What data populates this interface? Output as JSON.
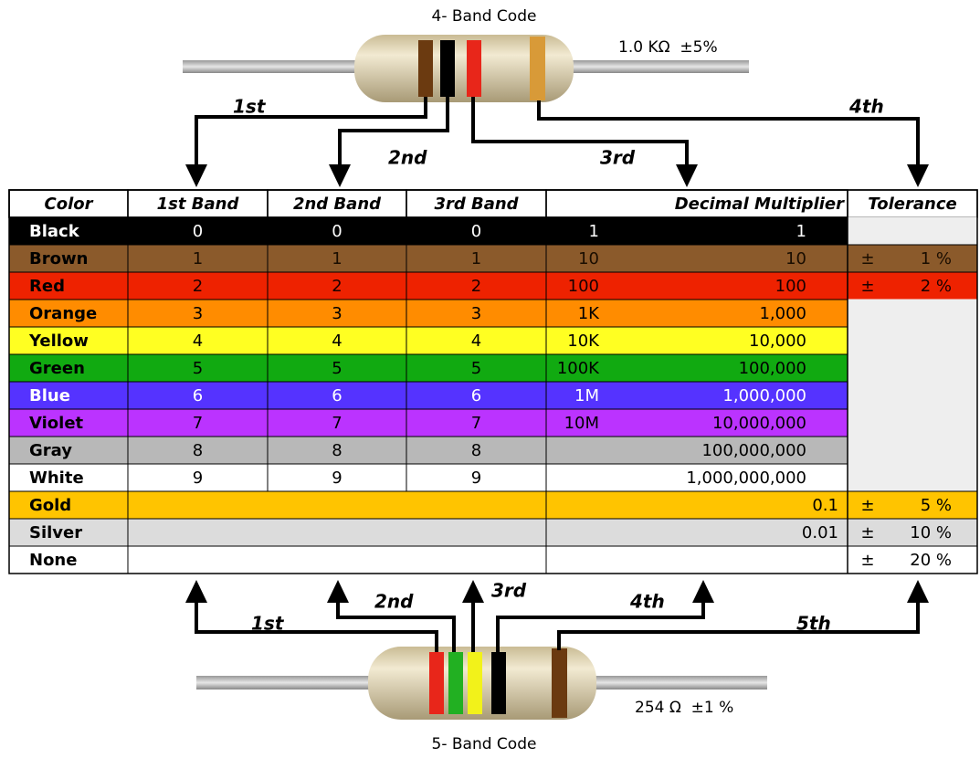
{
  "top": {
    "title": "4- Band Code",
    "value": "1.0 KΩ  ±5%",
    "labels": [
      "1st",
      "2nd",
      "3rd",
      "4th"
    ]
  },
  "bottom": {
    "title": "5- Band Code",
    "value": "254 Ω  ±1 %",
    "labels": [
      "1st",
      "2nd",
      "3rd",
      "4th",
      "5th"
    ]
  },
  "table": {
    "header": [
      "Color",
      "1st Band",
      "2nd Band",
      "3rd Band",
      "Decimal Multiplier",
      "Tolerance"
    ],
    "rows": [
      {
        "color": "Black",
        "bands": [
          "0",
          "0",
          "0"
        ],
        "multiplier": [
          "1",
          "1"
        ],
        "tolerance": null,
        "fill": "#000000",
        "text": "#ffffff"
      },
      {
        "color": "Brown",
        "bands": [
          "1",
          "1",
          "1"
        ],
        "multiplier": [
          "10",
          "10"
        ],
        "tolerance": [
          "±",
          "1 %"
        ],
        "fill": "#8b5a2b",
        "text": "#1a0d00"
      },
      {
        "color": "Red",
        "bands": [
          "2",
          "2",
          "2"
        ],
        "multiplier": [
          "100",
          "100"
        ],
        "tolerance": [
          "±",
          "2 %"
        ],
        "fill": "#ee2200",
        "text": "#1a0000"
      },
      {
        "color": "Orange",
        "bands": [
          "3",
          "3",
          "3"
        ],
        "multiplier": [
          "1K",
          "1,000"
        ],
        "tolerance": null,
        "fill": "#ff8c00",
        "text": "#000000"
      },
      {
        "color": "Yellow",
        "bands": [
          "4",
          "4",
          "4"
        ],
        "multiplier": [
          "10K",
          "10,000"
        ],
        "tolerance": null,
        "fill": "#ffff22",
        "text": "#000000"
      },
      {
        "color": "Green",
        "bands": [
          "5",
          "5",
          "5"
        ],
        "multiplier": [
          "100K",
          "100,000"
        ],
        "tolerance": null,
        "fill": "#11aa11",
        "text": "#000000"
      },
      {
        "color": "Blue",
        "bands": [
          "6",
          "6",
          "6"
        ],
        "multiplier": [
          "1M",
          "1,000,000"
        ],
        "tolerance": null,
        "fill": "#5533ff",
        "text": "#ffffff"
      },
      {
        "color": "Violet",
        "bands": [
          "7",
          "7",
          "7"
        ],
        "multiplier": [
          "10M",
          "10,000,000"
        ],
        "tolerance": null,
        "fill": "#bb33ff",
        "text": "#000000"
      },
      {
        "color": "Gray",
        "bands": [
          "8",
          "8",
          "8"
        ],
        "multiplier": [
          null,
          "100,000,000"
        ],
        "tolerance": null,
        "fill": "#b8b8b8",
        "text": "#000000"
      },
      {
        "color": "White",
        "bands": [
          "9",
          "9",
          "9"
        ],
        "multiplier": [
          null,
          "1,000,000,000"
        ],
        "tolerance": null,
        "fill": "#ffffff",
        "text": "#000000"
      },
      {
        "color": "Gold",
        "bands": null,
        "multiplier": [
          null,
          "0.1"
        ],
        "tolerance": [
          "±",
          "5 %"
        ],
        "fill": "#ffc400",
        "text": "#000000"
      },
      {
        "color": "Silver",
        "bands": null,
        "multiplier": [
          null,
          "0.01"
        ],
        "tolerance": [
          "±",
          "10 %"
        ],
        "fill": "#dcdcdc",
        "text": "#000000"
      },
      {
        "color": "None",
        "bands": null,
        "multiplier": [
          null,
          null
        ],
        "tolerance": [
          "±",
          "20 %"
        ],
        "fill": "#ffffff",
        "text": "#000000"
      }
    ]
  }
}
